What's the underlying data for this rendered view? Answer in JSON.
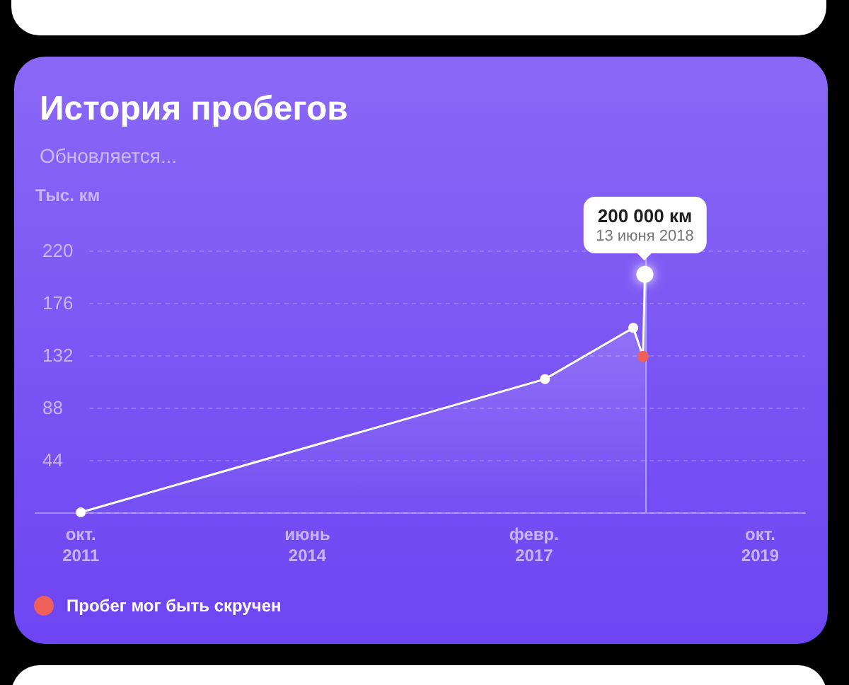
{
  "chart_data": {
    "type": "area",
    "title": "История пробегов",
    "subtitle": "Обновляется...",
    "ylabel": "Тыс. км",
    "xlim": [
      "2011-04-14",
      "2020-05-01"
    ],
    "xticks": [
      {
        "value": "2011-10-26",
        "label": "окт.\n2011"
      },
      {
        "value": "2014-06-25",
        "label": "июнь\n2014"
      },
      {
        "value": "2017-02-22",
        "label": "февр.\n2017"
      },
      {
        "value": "2019-10-21",
        "label": "окт.\n2019"
      }
    ],
    "ylim": [
      0,
      220
    ],
    "yticks": [
      44,
      88,
      132,
      176,
      220
    ],
    "grid": "y",
    "marker": "circle",
    "line_style": "solid",
    "legend": "bottom left",
    "series": [
      {
        "color": "#ffffff",
        "x": [
          "2011-10-26",
          "2017-04-10",
          "2018-04-24",
          "2018-06-05",
          "2018-06-13"
        ],
        "values": [
          0,
          112,
          155,
          131,
          200
        ],
        "colors": [
          "#ffffff",
          "#ffffff",
          "#ffffff",
          null,
          "#ffffff"
        ]
      },
      {
        "type": "scatter",
        "name": "Пробег мог быть скручен",
        "color": "#f0605a",
        "x": [
          "2018-06-05"
        ],
        "values": [
          131
        ]
      }
    ],
    "ref_lines": [
      {
        "axis": "x",
        "value": "2018-06-13",
        "color": "#cbbcfb"
      }
    ],
    "annotations": [
      {
        "text": "200 000 км\n13 июня 2018",
        "x": "2018-06-13",
        "y": 200
      }
    ]
  }
}
